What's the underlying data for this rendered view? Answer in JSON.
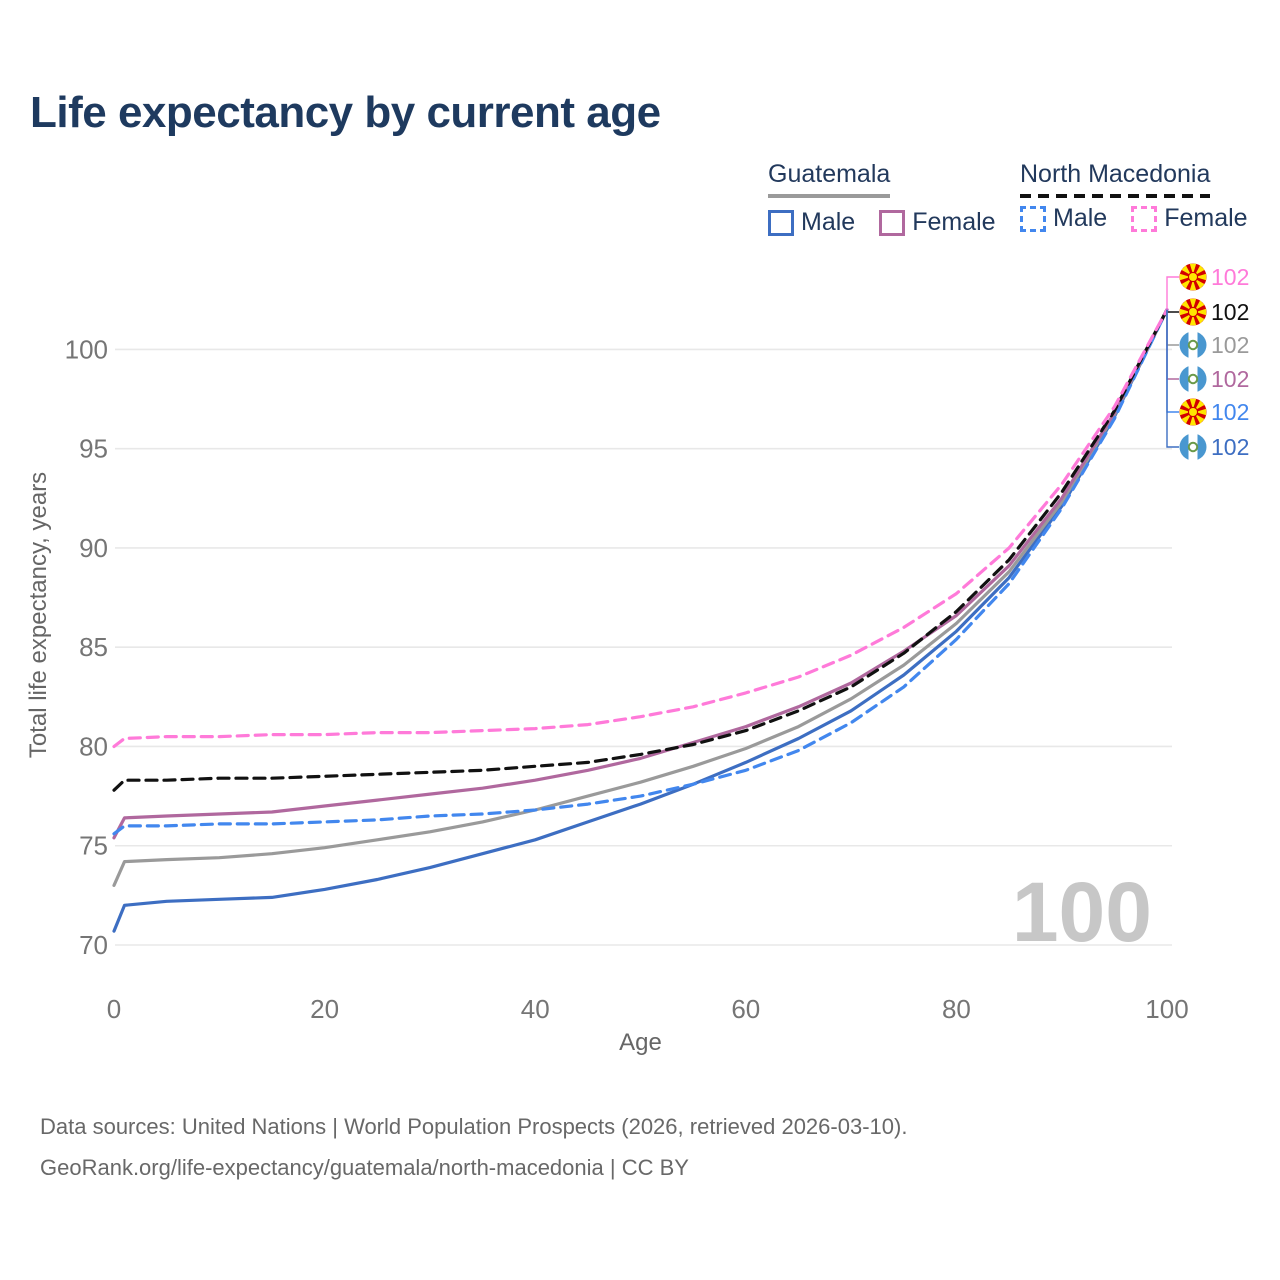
{
  "title": "Life expectancy by current age",
  "watermark_age": "100",
  "legend": {
    "groups": [
      {
        "name": "Guatemala",
        "line_style": "solid",
        "underline_color": "#9a9a9a",
        "items": [
          {
            "label": "Male",
            "color": "#3d6ec2",
            "dash": false
          },
          {
            "label": "Female",
            "color": "#b0689e",
            "dash": false
          }
        ]
      },
      {
        "name": "North Macedonia",
        "line_style": "dashed",
        "underline_color": "#111111",
        "items": [
          {
            "label": "Male",
            "color": "#4287ee",
            "dash": true
          },
          {
            "label": "Female",
            "color": "#ff7ad9",
            "dash": true
          }
        ]
      }
    ]
  },
  "chart_data": {
    "type": "line",
    "title": "Life expectancy by current age",
    "xlabel": "Age",
    "ylabel": "Total life expectancy, years",
    "xlim": [
      0,
      100
    ],
    "ylim": [
      70,
      103.7
    ],
    "xticks": [
      0,
      20,
      40,
      60,
      80,
      100
    ],
    "yticks": [
      70,
      75,
      80,
      85,
      90,
      95,
      100
    ],
    "grid": "horizontal",
    "x": [
      0,
      1,
      5,
      10,
      15,
      20,
      25,
      30,
      35,
      40,
      45,
      50,
      55,
      60,
      65,
      70,
      75,
      80,
      85,
      90,
      95,
      100
    ],
    "series": [
      {
        "name": "Guatemala Male",
        "country": "guatemala",
        "sex": "male",
        "color": "#3d6ec2",
        "dash": false,
        "values": [
          70.7,
          72.0,
          72.2,
          72.3,
          72.4,
          72.8,
          73.3,
          73.9,
          74.6,
          75.3,
          76.2,
          77.1,
          78.1,
          79.2,
          80.4,
          81.8,
          83.6,
          85.8,
          88.5,
          92.1,
          96.6,
          102
        ]
      },
      {
        "name": "Guatemala",
        "country": "guatemala",
        "sex": "all",
        "color": "#9a9a9a",
        "dash": false,
        "values": [
          73.0,
          74.2,
          74.3,
          74.4,
          74.6,
          74.9,
          75.3,
          75.7,
          76.2,
          76.8,
          77.5,
          78.2,
          79.0,
          79.9,
          81.0,
          82.4,
          84.1,
          86.2,
          88.8,
          92.3,
          96.7,
          102
        ]
      },
      {
        "name": "Guatemala Female",
        "country": "guatemala",
        "sex": "female",
        "color": "#b0689e",
        "dash": false,
        "values": [
          75.4,
          76.4,
          76.5,
          76.6,
          76.7,
          77.0,
          77.3,
          77.6,
          77.9,
          78.3,
          78.8,
          79.4,
          80.2,
          81.0,
          82.0,
          83.2,
          84.8,
          86.6,
          89.1,
          92.5,
          96.8,
          102
        ]
      },
      {
        "name": "North Macedonia Male",
        "country": "north-macedonia",
        "sex": "male",
        "color": "#4287ee",
        "dash": true,
        "values": [
          75.6,
          76.0,
          76.0,
          76.1,
          76.1,
          76.2,
          76.3,
          76.5,
          76.6,
          76.8,
          77.1,
          77.5,
          78.1,
          78.8,
          79.8,
          81.2,
          83.0,
          85.4,
          88.2,
          92.0,
          96.5,
          102
        ]
      },
      {
        "name": "North Macedonia",
        "country": "north-macedonia",
        "sex": "all",
        "color": "#111111",
        "dash": true,
        "values": [
          77.8,
          78.3,
          78.3,
          78.4,
          78.4,
          78.5,
          78.6,
          78.7,
          78.8,
          79.0,
          79.2,
          79.6,
          80.1,
          80.8,
          81.8,
          83.0,
          84.7,
          86.8,
          89.4,
          92.8,
          96.9,
          102
        ]
      },
      {
        "name": "North Macedonia Female",
        "country": "north-macedonia",
        "sex": "female",
        "color": "#ff7ad9",
        "dash": true,
        "values": [
          80.0,
          80.4,
          80.5,
          80.5,
          80.6,
          80.6,
          80.7,
          80.7,
          80.8,
          80.9,
          81.1,
          81.5,
          82.0,
          82.7,
          83.5,
          84.6,
          86.0,
          87.7,
          90.0,
          93.2,
          97.1,
          102
        ]
      }
    ],
    "end_labels": [
      {
        "value": "102",
        "series": "North Macedonia Female",
        "flag": "north-macedonia",
        "color": "#ff7ad9"
      },
      {
        "value": "102",
        "series": "North Macedonia",
        "flag": "north-macedonia",
        "color": "#111111"
      },
      {
        "value": "102",
        "series": "Guatemala",
        "flag": "guatemala",
        "color": "#9a9a9a"
      },
      {
        "value": "102",
        "series": "Guatemala Female",
        "flag": "guatemala",
        "color": "#b0689e"
      },
      {
        "value": "102",
        "series": "North Macedonia Male",
        "flag": "north-macedonia",
        "color": "#4287ee"
      },
      {
        "value": "102",
        "series": "Guatemala Male",
        "flag": "guatemala",
        "color": "#3d6ec2"
      }
    ]
  },
  "footer": {
    "line1": "Data sources: United Nations | World Population Prospects (2026, retrieved 2026-03-10).",
    "line2": "GeoRank.org/life-expectancy/guatemala/north-macedonia | CC BY"
  }
}
